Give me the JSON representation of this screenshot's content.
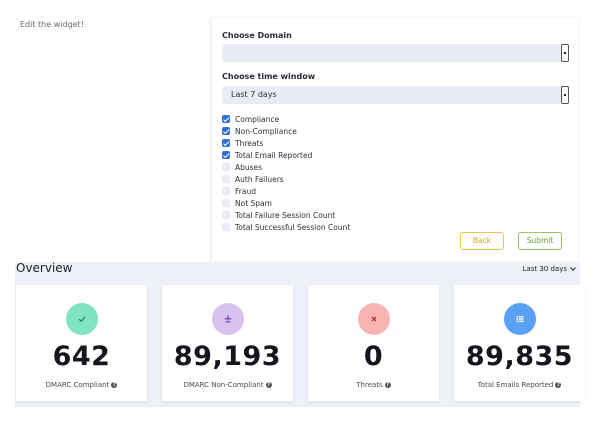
{
  "edit_note": "Edit the widget!",
  "form": {
    "domain_label": "Choose Domain",
    "domain_value": "",
    "time_label": "Choose time window",
    "time_value": "Last 7 days",
    "options": [
      {
        "label": "Compliance",
        "checked": true
      },
      {
        "label": "Non-Compliance",
        "checked": true
      },
      {
        "label": "Threats",
        "checked": true
      },
      {
        "label": "Total Email Reported",
        "checked": true
      },
      {
        "label": "Abuses",
        "checked": false
      },
      {
        "label": "Auth Failuers",
        "checked": false
      },
      {
        "label": "Fraud",
        "checked": false
      },
      {
        "label": "Not Spam",
        "checked": false
      },
      {
        "label": "Total Failure Session Count",
        "checked": false
      },
      {
        "label": "Total Successful Session Count",
        "checked": false
      }
    ],
    "back_label": "Back",
    "submit_label": "Submit"
  },
  "overview": {
    "title": "Overview",
    "range": "Last 30 days",
    "cards": [
      {
        "value": "642",
        "caption": "DMARC Compliant",
        "icon": "check-icon",
        "bg": "#7fe3c4",
        "fg": "#1d8a66"
      },
      {
        "value": "89,193",
        "caption": "DMARC Non-Compliant",
        "icon": "balance-icon",
        "bg": "#d7c3ee",
        "fg": "#7d4bb7"
      },
      {
        "value": "0",
        "caption": "Threats",
        "icon": "close-icon",
        "bg": "#f9b3b3",
        "fg": "#c72b2b"
      },
      {
        "value": "89,835",
        "caption": "Total Emails Reported",
        "icon": "list-icon",
        "bg": "#5aa0f5",
        "fg": "#ffffff"
      }
    ]
  }
}
